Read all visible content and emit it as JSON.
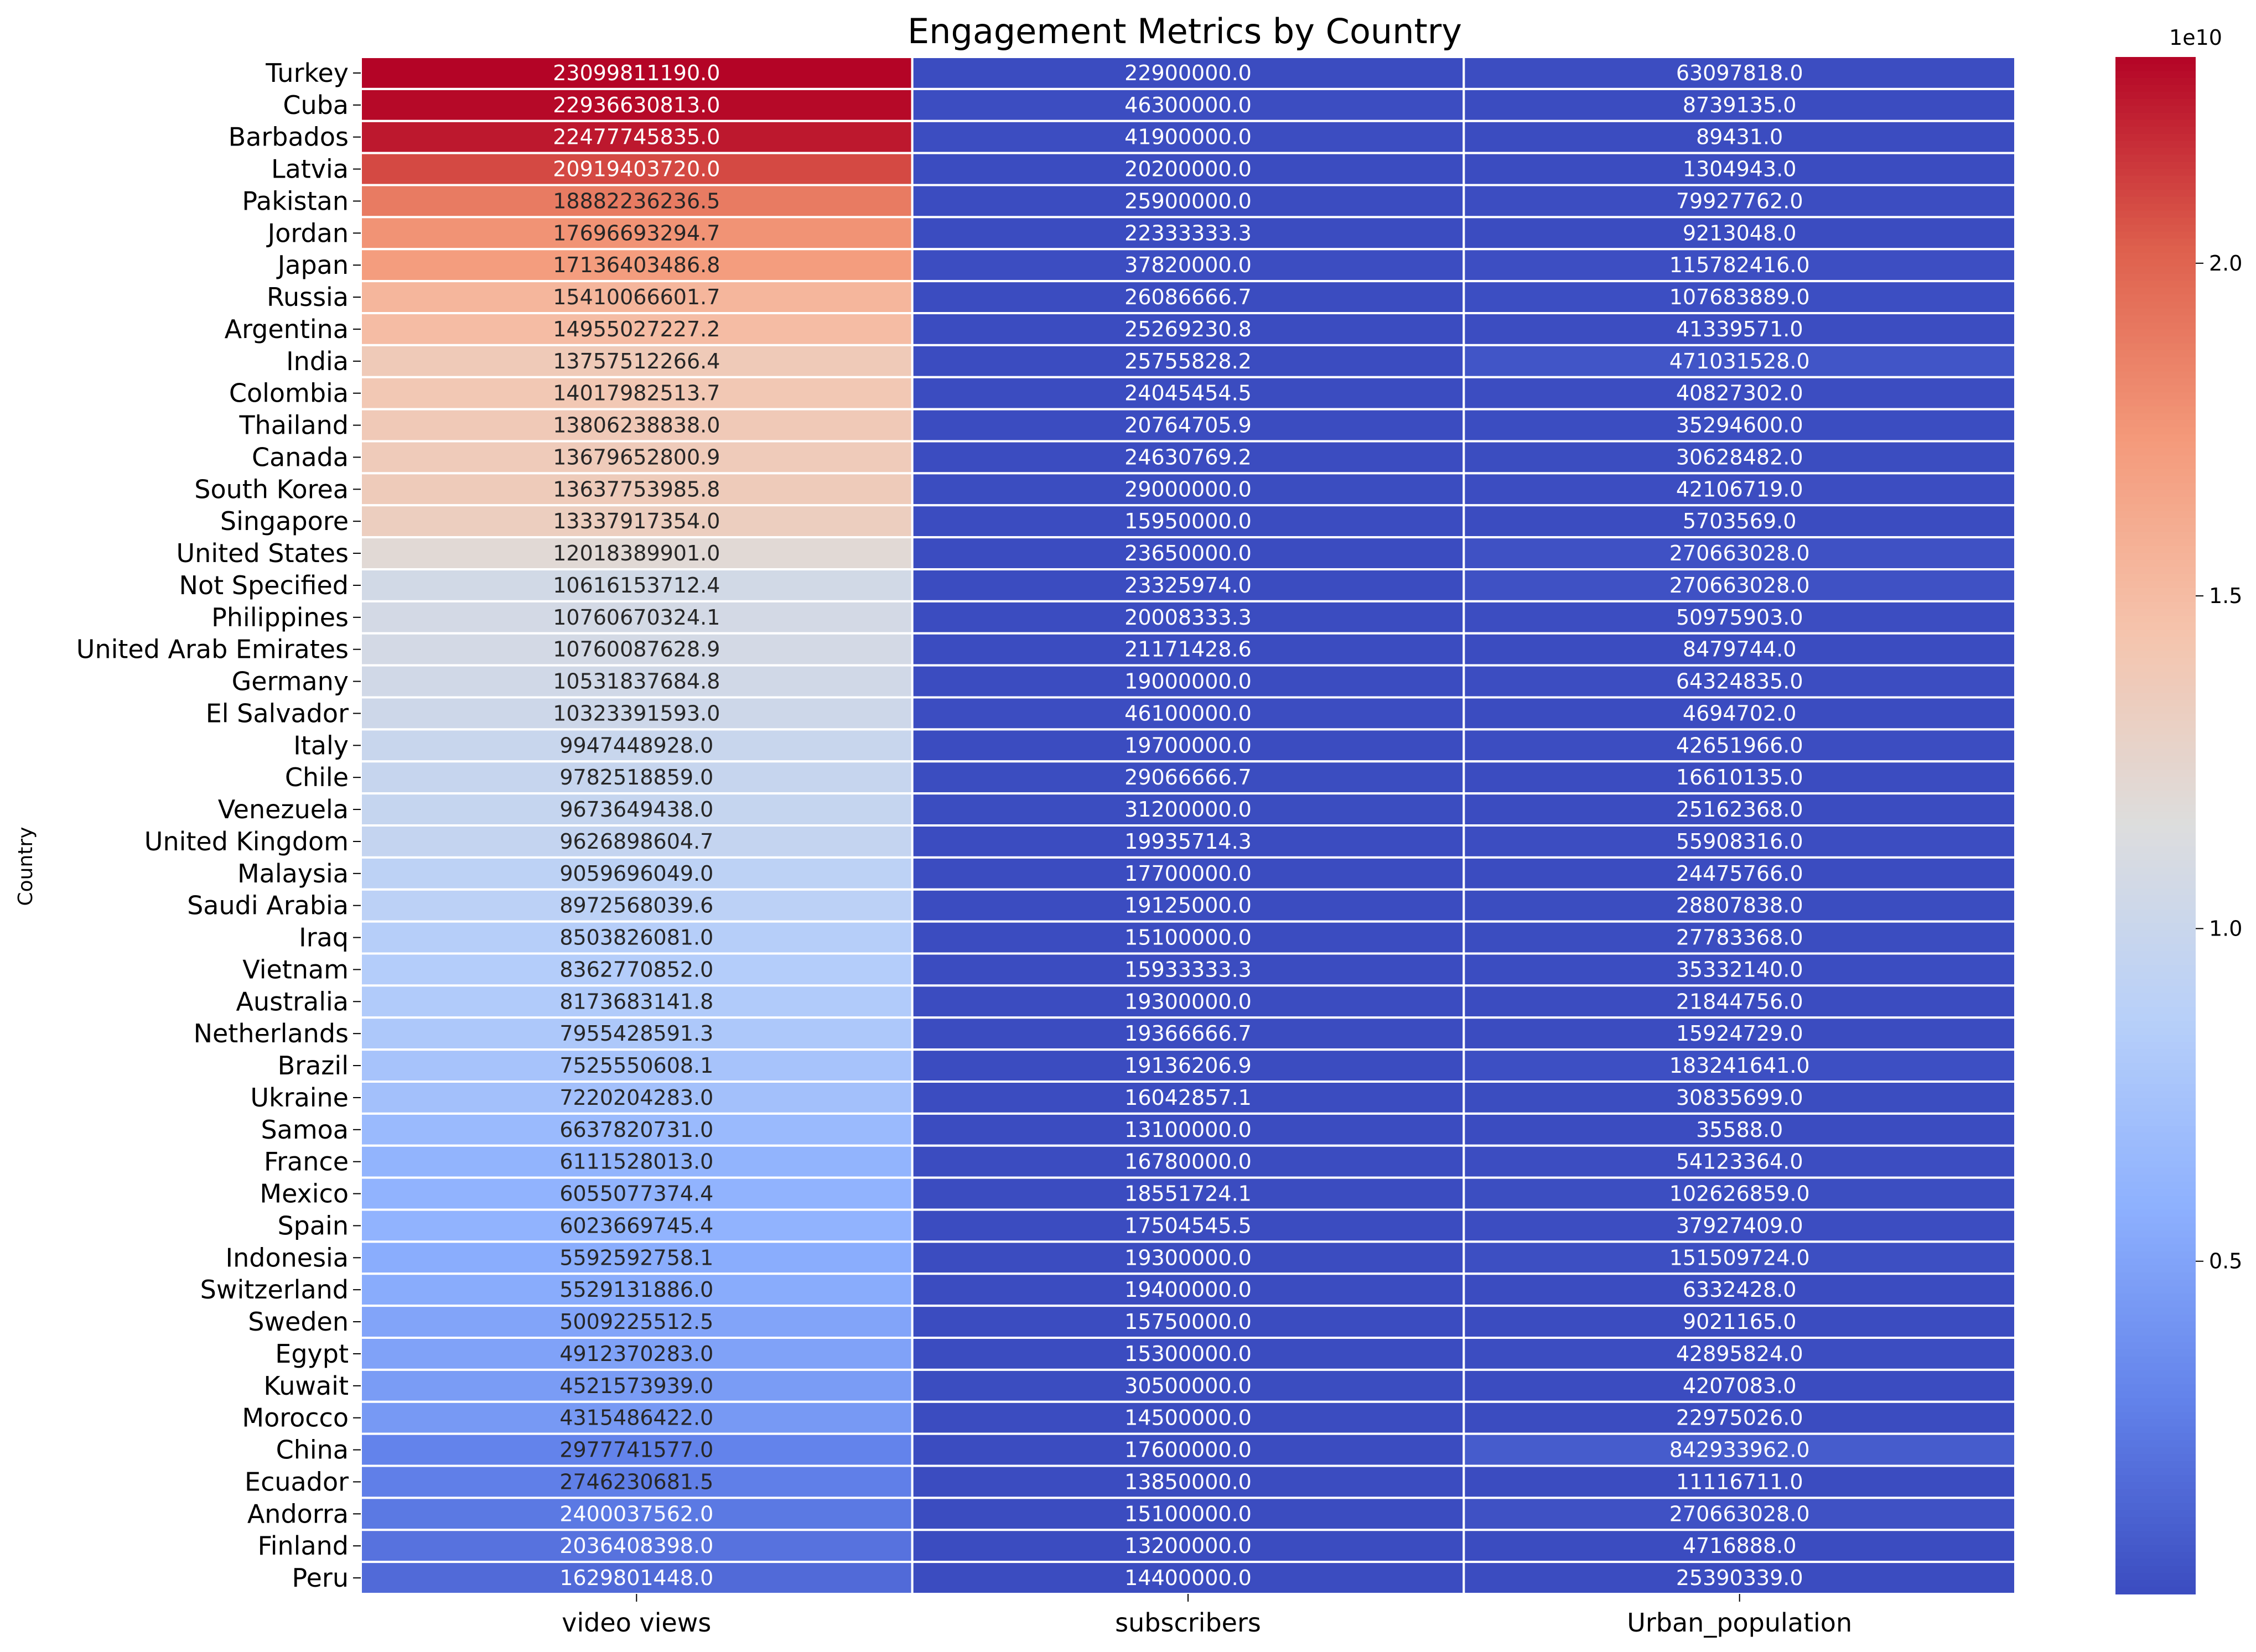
{
  "chart_data": {
    "type": "heatmap",
    "title": "Engagement Metrics by Country",
    "ylabel": "Country",
    "xlabel": "",
    "columns": [
      "video views",
      "subscribers",
      "Urban_population"
    ],
    "rows": [
      {
        "country": "Turkey",
        "values": [
          23099811190.0,
          22900000.0,
          63097818.0
        ],
        "labels": [
          "23099811190.0",
          "22900000.0",
          "63097818.0"
        ]
      },
      {
        "country": "Cuba",
        "values": [
          22936630813.0,
          46300000.0,
          8739135.0
        ],
        "labels": [
          "22936630813.0",
          "46300000.0",
          "8739135.0"
        ]
      },
      {
        "country": "Barbados",
        "values": [
          22477745835.0,
          41900000.0,
          89431.0
        ],
        "labels": [
          "22477745835.0",
          "41900000.0",
          "89431.0"
        ]
      },
      {
        "country": "Latvia",
        "values": [
          20919403720.0,
          20200000.0,
          1304943.0
        ],
        "labels": [
          "20919403720.0",
          "20200000.0",
          "1304943.0"
        ]
      },
      {
        "country": "Pakistan",
        "values": [
          18882236236.5,
          25900000.0,
          79927762.0
        ],
        "labels": [
          "18882236236.5",
          "25900000.0",
          "79927762.0"
        ]
      },
      {
        "country": "Jordan",
        "values": [
          17696693294.7,
          22333333.3,
          9213048.0
        ],
        "labels": [
          "17696693294.7",
          "22333333.3",
          "9213048.0"
        ]
      },
      {
        "country": "Japan",
        "values": [
          17136403486.8,
          37820000.0,
          115782416.0
        ],
        "labels": [
          "17136403486.8",
          "37820000.0",
          "115782416.0"
        ]
      },
      {
        "country": "Russia",
        "values": [
          15410066601.7,
          26086666.7,
          107683889.0
        ],
        "labels": [
          "15410066601.7",
          "26086666.7",
          "107683889.0"
        ]
      },
      {
        "country": "Argentina",
        "values": [
          14955027227.2,
          25269230.8,
          41339571.0
        ],
        "labels": [
          "14955027227.2",
          "25269230.8",
          "41339571.0"
        ]
      },
      {
        "country": "India",
        "values": [
          13757512266.4,
          25755828.2,
          471031528.0
        ],
        "labels": [
          "13757512266.4",
          "25755828.2",
          "471031528.0"
        ]
      },
      {
        "country": "Colombia",
        "values": [
          14017982513.7,
          24045454.5,
          40827302.0
        ],
        "labels": [
          "14017982513.7",
          "24045454.5",
          "40827302.0"
        ]
      },
      {
        "country": "Thailand",
        "values": [
          13806238838.0,
          20764705.9,
          35294600.0
        ],
        "labels": [
          "13806238838.0",
          "20764705.9",
          "35294600.0"
        ]
      },
      {
        "country": "Canada",
        "values": [
          13679652800.9,
          24630769.2,
          30628482.0
        ],
        "labels": [
          "13679652800.9",
          "24630769.2",
          "30628482.0"
        ]
      },
      {
        "country": "South Korea",
        "values": [
          13637753985.8,
          29000000.0,
          42106719.0
        ],
        "labels": [
          "13637753985.8",
          "29000000.0",
          "42106719.0"
        ]
      },
      {
        "country": "Singapore",
        "values": [
          13337917354.0,
          15950000.0,
          5703569.0
        ],
        "labels": [
          "13337917354.0",
          "15950000.0",
          "5703569.0"
        ]
      },
      {
        "country": "United States",
        "values": [
          12018389901.0,
          23650000.0,
          270663028.0
        ],
        "labels": [
          "12018389901.0",
          "23650000.0",
          "270663028.0"
        ]
      },
      {
        "country": "Not Specified",
        "values": [
          10616153712.4,
          23325974.0,
          270663028.0
        ],
        "labels": [
          "10616153712.4",
          "23325974.0",
          "270663028.0"
        ]
      },
      {
        "country": "Philippines",
        "values": [
          10760670324.1,
          20008333.3,
          50975903.0
        ],
        "labels": [
          "10760670324.1",
          "20008333.3",
          "50975903.0"
        ]
      },
      {
        "country": "United Arab Emirates",
        "values": [
          10760087628.9,
          21171428.6,
          8479744.0
        ],
        "labels": [
          "10760087628.9",
          "21171428.6",
          "8479744.0"
        ]
      },
      {
        "country": "Germany",
        "values": [
          10531837684.8,
          19000000.0,
          64324835.0
        ],
        "labels": [
          "10531837684.8",
          "19000000.0",
          "64324835.0"
        ]
      },
      {
        "country": "El Salvador",
        "values": [
          10323391593.0,
          46100000.0,
          4694702.0
        ],
        "labels": [
          "10323391593.0",
          "46100000.0",
          "4694702.0"
        ]
      },
      {
        "country": "Italy",
        "values": [
          9947448928.0,
          19700000.0,
          42651966.0
        ],
        "labels": [
          "9947448928.0",
          "19700000.0",
          "42651966.0"
        ]
      },
      {
        "country": "Chile",
        "values": [
          9782518859.0,
          29066666.7,
          16610135.0
        ],
        "labels": [
          "9782518859.0",
          "29066666.7",
          "16610135.0"
        ]
      },
      {
        "country": "Venezuela",
        "values": [
          9673649438.0,
          31200000.0,
          25162368.0
        ],
        "labels": [
          "9673649438.0",
          "31200000.0",
          "25162368.0"
        ]
      },
      {
        "country": "United Kingdom",
        "values": [
          9626898604.7,
          19935714.3,
          55908316.0
        ],
        "labels": [
          "9626898604.7",
          "19935714.3",
          "55908316.0"
        ]
      },
      {
        "country": "Malaysia",
        "values": [
          9059696049.0,
          17700000.0,
          24475766.0
        ],
        "labels": [
          "9059696049.0",
          "17700000.0",
          "24475766.0"
        ]
      },
      {
        "country": "Saudi Arabia",
        "values": [
          8972568039.6,
          19125000.0,
          28807838.0
        ],
        "labels": [
          "8972568039.6",
          "19125000.0",
          "28807838.0"
        ]
      },
      {
        "country": "Iraq",
        "values": [
          8503826081.0,
          15100000.0,
          27783368.0
        ],
        "labels": [
          "8503826081.0",
          "15100000.0",
          "27783368.0"
        ]
      },
      {
        "country": "Vietnam",
        "values": [
          8362770852.0,
          15933333.3,
          35332140.0
        ],
        "labels": [
          "8362770852.0",
          "15933333.3",
          "35332140.0"
        ]
      },
      {
        "country": "Australia",
        "values": [
          8173683141.8,
          19300000.0,
          21844756.0
        ],
        "labels": [
          "8173683141.8",
          "19300000.0",
          "21844756.0"
        ]
      },
      {
        "country": "Netherlands",
        "values": [
          7955428591.3,
          19366666.7,
          15924729.0
        ],
        "labels": [
          "7955428591.3",
          "19366666.7",
          "15924729.0"
        ]
      },
      {
        "country": "Brazil",
        "values": [
          7525550608.1,
          19136206.9,
          183241641.0
        ],
        "labels": [
          "7525550608.1",
          "19136206.9",
          "183241641.0"
        ]
      },
      {
        "country": "Ukraine",
        "values": [
          7220204283.0,
          16042857.1,
          30835699.0
        ],
        "labels": [
          "7220204283.0",
          "16042857.1",
          "30835699.0"
        ]
      },
      {
        "country": "Samoa",
        "values": [
          6637820731.0,
          13100000.0,
          35588.0
        ],
        "labels": [
          "6637820731.0",
          "13100000.0",
          "35588.0"
        ]
      },
      {
        "country": "France",
        "values": [
          6111528013.0,
          16780000.0,
          54123364.0
        ],
        "labels": [
          "6111528013.0",
          "16780000.0",
          "54123364.0"
        ]
      },
      {
        "country": "Mexico",
        "values": [
          6055077374.4,
          18551724.1,
          102626859.0
        ],
        "labels": [
          "6055077374.4",
          "18551724.1",
          "102626859.0"
        ]
      },
      {
        "country": "Spain",
        "values": [
          6023669745.4,
          17504545.5,
          37927409.0
        ],
        "labels": [
          "6023669745.4",
          "17504545.5",
          "37927409.0"
        ]
      },
      {
        "country": "Indonesia",
        "values": [
          5592592758.1,
          19300000.0,
          151509724.0
        ],
        "labels": [
          "5592592758.1",
          "19300000.0",
          "151509724.0"
        ]
      },
      {
        "country": "Switzerland",
        "values": [
          5529131886.0,
          19400000.0,
          6332428.0
        ],
        "labels": [
          "5529131886.0",
          "19400000.0",
          "6332428.0"
        ]
      },
      {
        "country": "Sweden",
        "values": [
          5009225512.5,
          15750000.0,
          9021165.0
        ],
        "labels": [
          "5009225512.5",
          "15750000.0",
          "9021165.0"
        ]
      },
      {
        "country": "Egypt",
        "values": [
          4912370283.0,
          15300000.0,
          42895824.0
        ],
        "labels": [
          "4912370283.0",
          "15300000.0",
          "42895824.0"
        ]
      },
      {
        "country": "Kuwait",
        "values": [
          4521573939.0,
          30500000.0,
          4207083.0
        ],
        "labels": [
          "4521573939.0",
          "30500000.0",
          "4207083.0"
        ]
      },
      {
        "country": "Morocco",
        "values": [
          4315486422.0,
          14500000.0,
          22975026.0
        ],
        "labels": [
          "4315486422.0",
          "14500000.0",
          "22975026.0"
        ]
      },
      {
        "country": "China",
        "values": [
          2977741577.0,
          17600000.0,
          842933962.0
        ],
        "labels": [
          "2977741577.0",
          "17600000.0",
          "842933962.0"
        ]
      },
      {
        "country": "Ecuador",
        "values": [
          2746230681.5,
          13850000.0,
          11116711.0
        ],
        "labels": [
          "2746230681.5",
          "13850000.0",
          "11116711.0"
        ]
      },
      {
        "country": "Andorra",
        "values": [
          2400037562.0,
          15100000.0,
          270663028.0
        ],
        "labels": [
          "2400037562.0",
          "15100000.0",
          "270663028.0"
        ]
      },
      {
        "country": "Finland",
        "values": [
          2036408398.0,
          13200000.0,
          4716888.0
        ],
        "labels": [
          "2036408398.0",
          "13200000.0",
          "4716888.0"
        ]
      },
      {
        "country": "Peru",
        "values": [
          1629801448.0,
          14400000.0,
          25390339.0
        ],
        "labels": [
          "1629801448.0",
          "14400000.0",
          "25390339.0"
        ]
      }
    ],
    "colorbar": {
      "colormap": "coolwarm",
      "vmin": 35588.0,
      "vmax": 23099811190.0,
      "ticks": [
        0.5,
        1.0,
        1.5,
        2.0
      ],
      "tick_labels": [
        "0.5",
        "1.0",
        "1.5",
        "2.0"
      ],
      "offset_label": "1e10",
      "scale": 10000000000
    },
    "grid": true,
    "legend": "colorbar-right"
  }
}
